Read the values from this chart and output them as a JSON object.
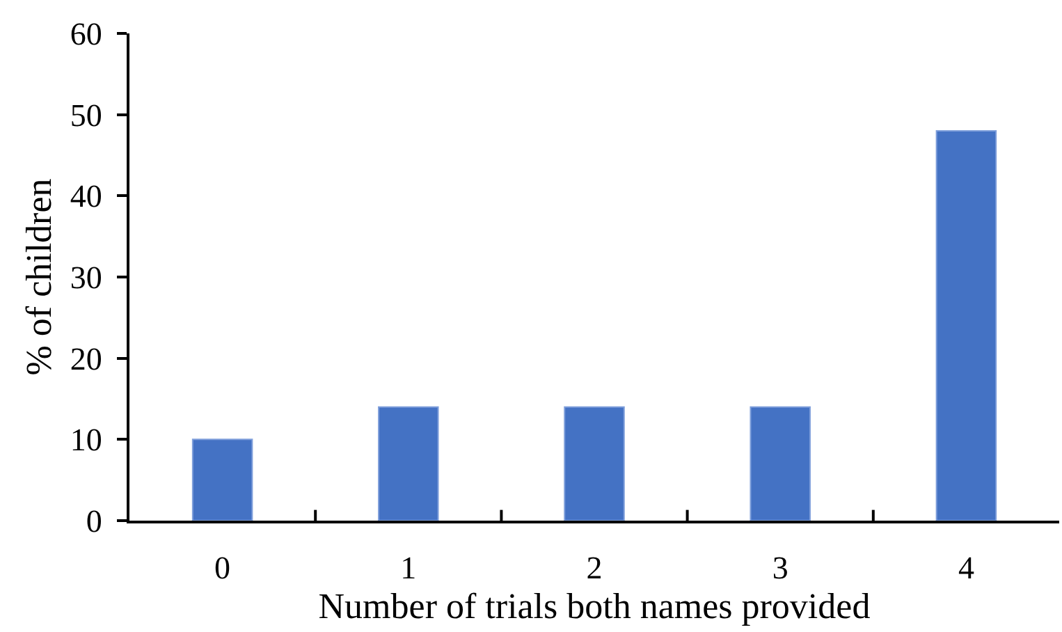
{
  "chart_data": {
    "type": "bar",
    "xlabel": "Number of trials both names provided",
    "ylabel": "% of children",
    "categories": [
      "0",
      "1",
      "2",
      "3",
      "4"
    ],
    "values": [
      10,
      14,
      14,
      14,
      48
    ],
    "color": "#4472c4",
    "ylim": [
      0,
      60
    ],
    "yticks": [
      0,
      10,
      20,
      30,
      40,
      50,
      60
    ]
  }
}
